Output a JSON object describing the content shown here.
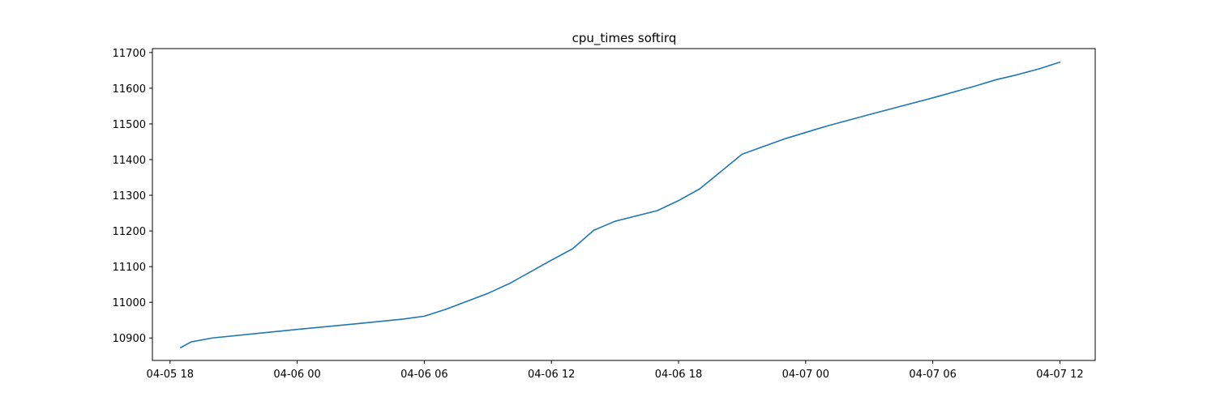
{
  "chart_data": {
    "type": "line",
    "title": "cpu_times softirq",
    "xlabel": "",
    "ylabel": "",
    "x_axis_type": "datetime",
    "xlim": [
      "2024-04-05T17:10:00",
      "2024-04-07T13:40:00"
    ],
    "ylim": [
      10837,
      11711
    ],
    "grid": false,
    "legend": "none",
    "x_ticks": [
      {
        "value": "2024-04-05T18:00:00",
        "label": "04-05 18"
      },
      {
        "value": "2024-04-06T00:00:00",
        "label": "04-06 00"
      },
      {
        "value": "2024-04-06T06:00:00",
        "label": "04-06 06"
      },
      {
        "value": "2024-04-06T12:00:00",
        "label": "04-06 12"
      },
      {
        "value": "2024-04-06T18:00:00",
        "label": "04-06 18"
      },
      {
        "value": "2024-04-07T00:00:00",
        "label": "04-07 00"
      },
      {
        "value": "2024-04-07T06:00:00",
        "label": "04-07 06"
      },
      {
        "value": "2024-04-07T12:00:00",
        "label": "04-07 12"
      }
    ],
    "y_ticks": [
      10900,
      11000,
      11100,
      11200,
      11300,
      11400,
      11500,
      11600,
      11700
    ],
    "series": [
      {
        "name": "",
        "color": "#1f77b4",
        "x": [
          "2024-04-05T18:30:00",
          "2024-04-05T19:00:00",
          "2024-04-05T20:00:00",
          "2024-04-05T22:00:00",
          "2024-04-06T00:00:00",
          "2024-04-06T03:00:00",
          "2024-04-06T05:00:00",
          "2024-04-06T06:00:00",
          "2024-04-06T07:00:00",
          "2024-04-06T09:00:00",
          "2024-04-06T10:00:00",
          "2024-04-06T12:00:00",
          "2024-04-06T13:00:00",
          "2024-04-06T14:00:00",
          "2024-04-06T15:00:00",
          "2024-04-06T17:00:00",
          "2024-04-06T18:00:00",
          "2024-04-06T19:00:00",
          "2024-04-06T21:00:00",
          "2024-04-06T23:00:00",
          "2024-04-07T01:00:00",
          "2024-04-07T03:00:00",
          "2024-04-07T06:00:00",
          "2024-04-07T08:00:00",
          "2024-04-07T09:00:00",
          "2024-04-07T10:00:00",
          "2024-04-07T11:00:00",
          "2024-04-07T12:00:00"
        ],
        "y": [
          10873,
          10889,
          10900,
          10912,
          10924,
          10941,
          10953,
          10961,
          10980,
          11025,
          11052,
          11118,
          11150,
          11202,
          11227,
          11257,
          11285,
          11318,
          11415,
          11458,
          11494,
          11526,
          11573,
          11606,
          11624,
          11638,
          11654,
          11673
        ]
      }
    ]
  }
}
